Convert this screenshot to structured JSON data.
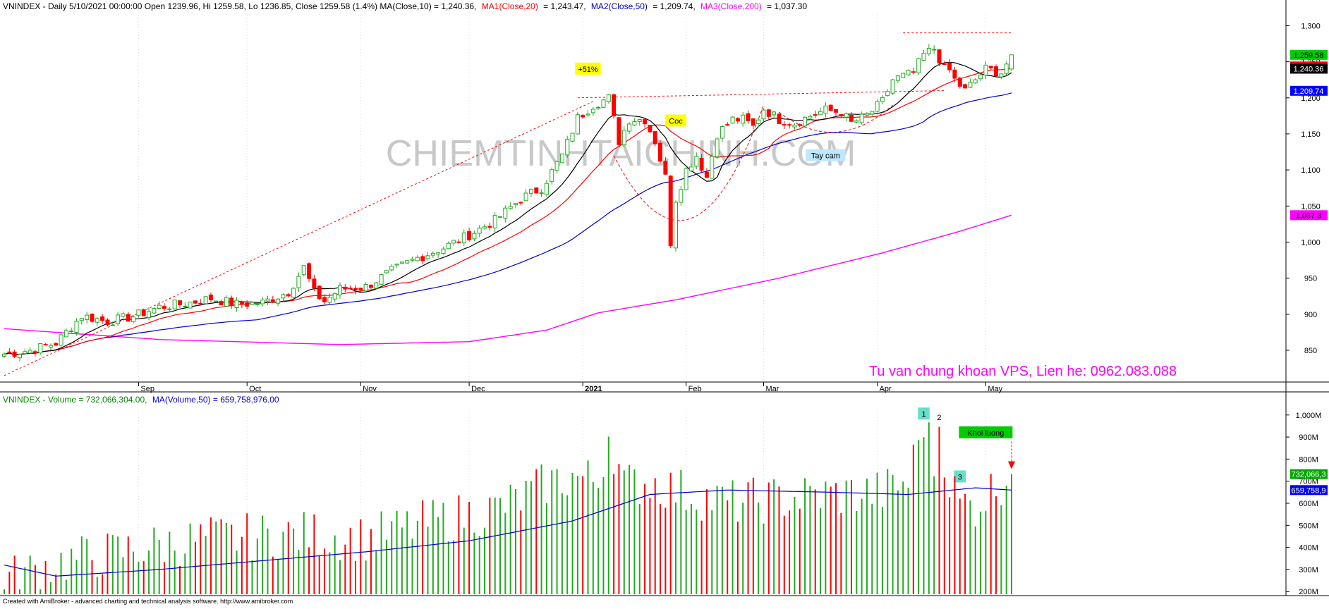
{
  "colors": {
    "up": "#22aa22",
    "down": "#ff0000",
    "ma10": "#000000",
    "ma20": "#ff0000",
    "ma50": "#0000cc",
    "ma200": "#ff00ff",
    "vol_ma": "#0000cc",
    "vol_title": "#008800",
    "watermark": "#c8c8c8",
    "note_bg": "#ffff00",
    "tay_cam_bg": "#bde8ff",
    "khoi_bg": "#00cc00",
    "label_teal": "#66e0c8"
  },
  "header": {
    "price_prefix": "VNINDEX - Daily 5/10/2021 00:00:00 Open 1239.96, Hi 1259.58, Lo 1236.85, Close 1259.58 (1.4%) MA(Close,10) = 1,240.36,",
    "ma1": "MA1(Close,20)",
    "ma1_val": "= 1,243.47,",
    "ma2": "MA2(Close,50)",
    "ma2_val": "= 1,209.74,",
    "ma3": "MA3(Close,200)",
    "ma3_val": "= 1,037.30",
    "volume_prefix": "VNINDEX - Volume = 732,066,304.00,",
    "volume_ma": "MA(Volume,50) = 659,758,976.00"
  },
  "watermark": "CHIEMTINHTAICHINH.COM",
  "advert": "Tu van chung khoan VPS, Lien he: 0962.083.088",
  "footer": "Created with AmiBroker - advanced charting and technical analysis software. http://www.amibroker.com",
  "annotations": {
    "gain": "+51%",
    "coc": "Coc",
    "tay_cam": "Tay cam",
    "khoi_luong": "Khoi luong",
    "vol_marks": [
      "1",
      "2",
      "3"
    ]
  },
  "price_axis": {
    "ticks": [
      "1,300",
      "1,250",
      "1,200",
      "1,150",
      "1,100",
      "1,050",
      "1,000",
      "950",
      "900",
      "850"
    ],
    "tick_values": [
      1300,
      1250,
      1200,
      1150,
      1100,
      1050,
      1000,
      950,
      900,
      850
    ],
    "ylim": [
      808,
      1318
    ],
    "tags": [
      {
        "text": "1,259.58",
        "value": 1259.58,
        "color": "#00cc00",
        "fg": "#000000"
      },
      {
        "text": "1,243.47",
        "value": 1243.47,
        "color": "#ff0000",
        "fg": "#000000"
      },
      {
        "text": "1,240.36",
        "value": 1240.36,
        "color": "#000000",
        "fg": "#ffffff"
      },
      {
        "text": "1,209.74",
        "value": 1209.74,
        "color": "#0000ff",
        "fg": "#ffffff"
      },
      {
        "text": "1,037.3",
        "value": 1037.3,
        "color": "#ff00ff",
        "fg": "#000000"
      }
    ]
  },
  "volume_axis": {
    "ticks": [
      "1,000M",
      "900M",
      "800M",
      "700M",
      "600M",
      "500M",
      "400M",
      "300M",
      "200M"
    ],
    "tick_values": [
      1000,
      900,
      800,
      700,
      600,
      500,
      400,
      300,
      200
    ],
    "ylim": [
      188,
      1028
    ],
    "tags": [
      {
        "text": "732,066,3",
        "value": 732.07,
        "color": "#00aa00",
        "fg": "#ffffff"
      },
      {
        "text": "659,758,9",
        "value": 659.76,
        "color": "#0000ff",
        "fg": "#ffffff"
      }
    ]
  },
  "x_labels": [
    {
      "text": "Sep",
      "index": 26,
      "bold": false
    },
    {
      "text": "Oct",
      "index": 47,
      "bold": false
    },
    {
      "text": "Nov",
      "index": 69,
      "bold": false
    },
    {
      "text": "Dec",
      "index": 90,
      "bold": false
    },
    {
      "text": "2021",
      "index": 112,
      "bold": true
    },
    {
      "text": "Feb",
      "index": 132,
      "bold": false
    },
    {
      "text": "Mar",
      "index": 147,
      "bold": false
    },
    {
      "text": "Apr",
      "index": 169,
      "bold": false
    },
    {
      "text": "May",
      "index": 190,
      "bold": false
    }
  ],
  "chart_data": {
    "type": "line",
    "ticker": "VNINDEX",
    "interval": "Daily",
    "last_bar": {
      "date": "5/10/2021",
      "open": 1239.96,
      "high": 1259.58,
      "low": 1236.85,
      "close": 1259.58,
      "change": "1.4%"
    },
    "ma_values": {
      "ma10": 1240.36,
      "ma20": 1243.47,
      "ma50": 1209.74,
      "ma200": 1037.3
    },
    "close_keypoints": [
      [
        0,
        845
      ],
      [
        5,
        850
      ],
      [
        10,
        860
      ],
      [
        15,
        898
      ],
      [
        20,
        890
      ],
      [
        25,
        897
      ],
      [
        30,
        910
      ],
      [
        35,
        915
      ],
      [
        40,
        922
      ],
      [
        45,
        914
      ],
      [
        50,
        916
      ],
      [
        55,
        931
      ],
      [
        58,
        965
      ],
      [
        60,
        930
      ],
      [
        62,
        918
      ],
      [
        65,
        935
      ],
      [
        70,
        938
      ],
      [
        75,
        960
      ],
      [
        80,
        978
      ],
      [
        85,
        992
      ],
      [
        90,
        1010
      ],
      [
        95,
        1030
      ],
      [
        100,
        1060
      ],
      [
        104,
        1075
      ],
      [
        108,
        1120
      ],
      [
        111,
        1172
      ],
      [
        114,
        1190
      ],
      [
        117,
        1200
      ],
      [
        119,
        1140
      ],
      [
        121,
        1170
      ],
      [
        124,
        1170
      ],
      [
        126,
        1140
      ],
      [
        128,
        1090
      ],
      [
        129,
        1000
      ],
      [
        130,
        1060
      ],
      [
        132,
        1100
      ],
      [
        134,
        1120
      ],
      [
        136,
        1090
      ],
      [
        138,
        1150
      ],
      [
        141,
        1170
      ],
      [
        143,
        1170
      ],
      [
        145,
        1160
      ],
      [
        147,
        1185
      ],
      [
        150,
        1170
      ],
      [
        153,
        1165
      ],
      [
        156,
        1175
      ],
      [
        159,
        1183
      ],
      [
        162,
        1180
      ],
      [
        164,
        1165
      ],
      [
        167,
        1175
      ],
      [
        170,
        1195
      ],
      [
        172,
        1225
      ],
      [
        174,
        1230
      ],
      [
        176,
        1235
      ],
      [
        178,
        1260
      ],
      [
        180,
        1268
      ],
      [
        182,
        1240
      ],
      [
        183,
        1238
      ],
      [
        184,
        1225
      ],
      [
        186,
        1210
      ],
      [
        188,
        1225
      ],
      [
        190,
        1240
      ],
      [
        193,
        1235
      ],
      [
        195,
        1259.58
      ]
    ],
    "volume_keypoints": [
      [
        0,
        250
      ],
      [
        10,
        330
      ],
      [
        20,
        370
      ],
      [
        30,
        410
      ],
      [
        40,
        440
      ],
      [
        50,
        450
      ],
      [
        60,
        460
      ],
      [
        70,
        440
      ],
      [
        80,
        500
      ],
      [
        90,
        550
      ],
      [
        95,
        570
      ],
      [
        100,
        620
      ],
      [
        105,
        690
      ],
      [
        110,
        720
      ],
      [
        115,
        700
      ],
      [
        117,
        920
      ],
      [
        120,
        680
      ],
      [
        125,
        700
      ],
      [
        130,
        660
      ],
      [
        140,
        600
      ],
      [
        150,
        620
      ],
      [
        160,
        640
      ],
      [
        170,
        650
      ],
      [
        175,
        700
      ],
      [
        178,
        980
      ],
      [
        180,
        780
      ],
      [
        181,
        950
      ],
      [
        183,
        700
      ],
      [
        185,
        600
      ],
      [
        188,
        590
      ],
      [
        192,
        680
      ],
      [
        195,
        732
      ]
    ],
    "volume_ma50_keypoints": [
      [
        0,
        320
      ],
      [
        10,
        270
      ],
      [
        30,
        300
      ],
      [
        50,
        340
      ],
      [
        70,
        380
      ],
      [
        90,
        430
      ],
      [
        110,
        520
      ],
      [
        125,
        640
      ],
      [
        140,
        660
      ],
      [
        160,
        650
      ],
      [
        175,
        640
      ],
      [
        188,
        670
      ],
      [
        195,
        659.76
      ]
    ],
    "ma200_keypoints": [
      [
        0,
        880
      ],
      [
        30,
        865
      ],
      [
        65,
        858
      ],
      [
        90,
        862
      ],
      [
        105,
        878
      ],
      [
        115,
        902
      ],
      [
        130,
        920
      ],
      [
        150,
        950
      ],
      [
        170,
        985
      ],
      [
        185,
        1015
      ],
      [
        195,
        1037.3
      ]
    ]
  }
}
